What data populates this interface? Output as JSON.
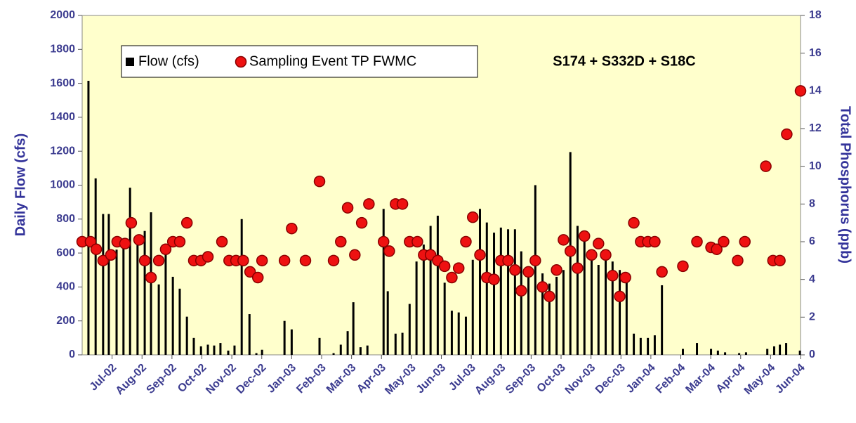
{
  "chart_data": {
    "type": "combo",
    "annotation": "S174 + S332D + S18C",
    "y_label": "Daily Flow (cfs)",
    "y2_label": "Total Phosphorus (ppb)",
    "xlim": [
      0,
      24
    ],
    "xticks": [
      {
        "value": 1,
        "label": "Jul-02"
      },
      {
        "value": 2,
        "label": "Aug-02"
      },
      {
        "value": 3,
        "label": "Sep-02"
      },
      {
        "value": 4,
        "label": "Oct-02"
      },
      {
        "value": 5,
        "label": "Nov-02"
      },
      {
        "value": 6,
        "label": "Dec-02"
      },
      {
        "value": 7,
        "label": "Jan-03"
      },
      {
        "value": 8,
        "label": "Feb-03"
      },
      {
        "value": 9,
        "label": "Mar-03"
      },
      {
        "value": 10,
        "label": "Apr-03"
      },
      {
        "value": 11,
        "label": "May-03"
      },
      {
        "value": 12,
        "label": "Jun-03"
      },
      {
        "value": 13,
        "label": "Jul-03"
      },
      {
        "value": 14,
        "label": "Aug-03"
      },
      {
        "value": 15,
        "label": "Sep-03"
      },
      {
        "value": 16,
        "label": "Oct-03"
      },
      {
        "value": 17,
        "label": "Nov-03"
      },
      {
        "value": 18,
        "label": "Dec-03"
      },
      {
        "value": 19,
        "label": "Jan-04"
      },
      {
        "value": 20,
        "label": "Feb-04"
      },
      {
        "value": 21,
        "label": "Mar-04"
      },
      {
        "value": 22,
        "label": "Apr-04"
      },
      {
        "value": 23,
        "label": "May-04"
      },
      {
        "value": 24,
        "label": "Jun-04"
      }
    ],
    "ylim": [
      0,
      2000
    ],
    "yticks": [
      0,
      200,
      400,
      600,
      800,
      1000,
      1200,
      1400,
      1600,
      1800,
      2000
    ],
    "y2lim": [
      0,
      18
    ],
    "y2ticks": [
      0,
      2,
      4,
      6,
      8,
      10,
      12,
      14,
      16,
      18
    ],
    "series": [
      {
        "name": "Flow (cfs)",
        "type": "bar",
        "color": "#000000",
        "x": [
          0.21,
          0.45,
          0.7,
          0.89,
          1.15,
          1.38,
          1.6,
          1.85,
          2.09,
          2.3,
          2.56,
          2.79,
          3.03,
          3.26,
          3.5,
          3.73,
          3.97,
          4.2,
          4.41,
          4.62,
          4.88,
          5.09,
          5.33,
          5.59,
          5.82,
          6.01,
          6.76,
          7.0,
          7.93,
          8.4,
          8.64,
          8.87,
          9.06,
          9.3,
          9.53,
          10.07,
          10.21,
          10.47,
          10.7,
          10.94,
          11.17,
          11.41,
          11.64,
          11.88,
          12.11,
          12.35,
          12.58,
          12.82,
          13.05,
          13.29,
          13.52,
          13.76,
          13.99,
          14.23,
          14.46,
          14.67,
          14.91,
          15.14,
          15.38,
          15.61,
          15.85,
          16.08,
          16.31,
          16.55,
          16.78,
          17.02,
          17.25,
          17.49,
          17.72,
          17.96,
          18.19,
          18.43,
          18.66,
          18.9,
          19.13,
          19.37,
          20.07,
          20.54,
          21.01,
          21.24,
          21.48,
          21.95,
          22.18,
          22.89,
          23.12,
          23.31,
          23.52,
          23.98
        ],
        "values": [
          1615,
          1040,
          830,
          830,
          620,
          660,
          985,
          690,
          730,
          840,
          415,
          590,
          460,
          390,
          225,
          100,
          50,
          60,
          55,
          70,
          25,
          55,
          800,
          240,
          10,
          30,
          200,
          150,
          100,
          10,
          60,
          140,
          310,
          45,
          55,
          860,
          375,
          125,
          130,
          300,
          550,
          650,
          760,
          820,
          425,
          260,
          250,
          225,
          560,
          860,
          780,
          720,
          750,
          740,
          740,
          610,
          500,
          1000,
          480,
          420,
          460,
          500,
          1195,
          760,
          720,
          620,
          530,
          580,
          550,
          500,
          440,
          125,
          100,
          100,
          115,
          410,
          35,
          70,
          35,
          25,
          15,
          10,
          15,
          35,
          50,
          60,
          70,
          25
        ]
      },
      {
        "name": "Sampling Event TP FWMC",
        "type": "scatter",
        "axis": "y2",
        "color": "#ee1111",
        "x": [
          0,
          0.28,
          0.47,
          0.7,
          0.96,
          1.17,
          1.43,
          1.64,
          1.9,
          2.09,
          2.3,
          2.56,
          2.79,
          3.03,
          3.26,
          3.5,
          3.73,
          3.97,
          4.2,
          4.67,
          4.91,
          5.14,
          5.38,
          5.61,
          5.87,
          6.01,
          6.76,
          7.0,
          7.46,
          7.93,
          8.4,
          8.64,
          8.87,
          9.11,
          9.34,
          9.58,
          10.07,
          10.26,
          10.47,
          10.7,
          10.94,
          11.2,
          11.41,
          11.64,
          11.88,
          12.11,
          12.35,
          12.58,
          12.82,
          13.05,
          13.29,
          13.52,
          13.76,
          13.99,
          14.23,
          14.46,
          14.67,
          14.91,
          15.14,
          15.38,
          15.61,
          15.85,
          16.08,
          16.31,
          16.55,
          16.78,
          17.02,
          17.25,
          17.49,
          17.72,
          17.96,
          18.15,
          18.43,
          18.66,
          18.9,
          19.13,
          19.37,
          20.07,
          20.54,
          21.01,
          21.2,
          21.43,
          21.9,
          22.14,
          22.84,
          23.08,
          23.31,
          23.54,
          24
        ],
        "values": [
          6,
          6,
          5.6,
          5,
          5.3,
          6,
          5.9,
          7,
          6.1,
          5,
          4.1,
          5,
          5.6,
          6,
          6,
          7,
          5,
          5,
          5.2,
          6,
          5,
          5,
          5,
          4.4,
          4.1,
          5,
          5,
          6.7,
          5,
          9.2,
          5,
          6,
          7.8,
          5.3,
          7,
          8,
          6,
          5.5,
          8,
          8,
          6,
          6,
          5.3,
          5.3,
          5,
          4.7,
          4.1,
          4.6,
          6,
          7.3,
          5.3,
          4.1,
          4,
          5,
          5,
          4.5,
          3.4,
          4.4,
          5,
          3.6,
          3.1,
          4.5,
          6.1,
          5.5,
          4.6,
          6.3,
          5.3,
          5.9,
          5.3,
          4.2,
          3.1,
          4.1,
          7,
          6,
          6,
          6,
          4.4,
          4.7,
          6,
          5.7,
          5.6,
          6,
          5,
          6,
          10,
          5,
          5,
          11.7,
          14
        ]
      }
    ]
  }
}
